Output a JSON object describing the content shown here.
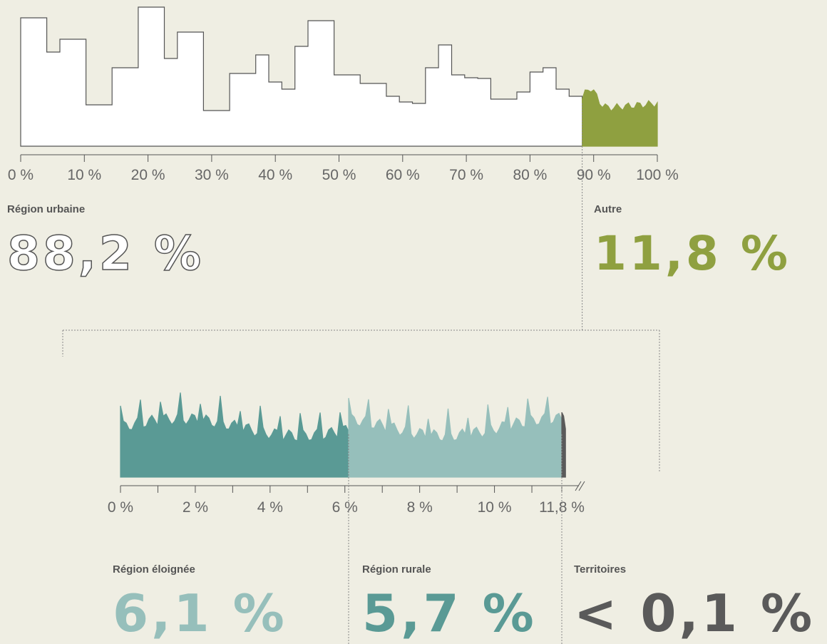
{
  "chart_data": [
    {
      "type": "silhouette-strip",
      "categories": [
        "Région urbaine",
        "Autre"
      ],
      "values": [
        88.2,
        11.8
      ],
      "value_labels": [
        "88,2 %",
        "11,8 %"
      ],
      "colors": [
        "#ffffff",
        "#8fa040"
      ],
      "label_colors": [
        "#ffffff",
        "#8fa040"
      ],
      "stroke": "#555555",
      "xlim": [
        0,
        100
      ],
      "xticks": [
        {
          "value": 0,
          "label": "0 %"
        },
        {
          "value": 10,
          "label": "10 %"
        },
        {
          "value": 20,
          "label": "20 %"
        },
        {
          "value": 30,
          "label": "30 %"
        },
        {
          "value": 40,
          "label": "40 %"
        },
        {
          "value": 50,
          "label": "50 %"
        },
        {
          "value": 60,
          "label": "60 %"
        },
        {
          "value": 70,
          "label": "70 %"
        },
        {
          "value": 80,
          "label": "80 %"
        },
        {
          "value": 90,
          "label": "90 %"
        },
        {
          "value": 100,
          "label": "100 %"
        }
      ]
    },
    {
      "type": "silhouette-strip",
      "categories": [
        "Région éloignée",
        "Région rurale",
        "Territoires"
      ],
      "values": [
        6.1,
        5.7,
        0.1
      ],
      "value_labels": [
        "6,1 %",
        "5,7 %",
        "< 0,1 %"
      ],
      "colors": [
        "#5a9a95",
        "#96bfbb",
        "#5a5a5a"
      ],
      "label_colors": [
        "#96bfbb",
        "#5a9a95",
        "#5a5a5a"
      ],
      "stroke": "#5a5a5a",
      "xlim": [
        0,
        11.8
      ],
      "xticks": [
        {
          "value": 0,
          "label": "0 %"
        },
        {
          "value": 2,
          "label": "2 %"
        },
        {
          "value": 4,
          "label": "4 %"
        },
        {
          "value": 6,
          "label": "6 %"
        },
        {
          "value": 8,
          "label": "8 %"
        },
        {
          "value": 10,
          "label": "10 %"
        },
        {
          "value": 11.8,
          "label": "11,8 %"
        }
      ],
      "minor_xticks": [
        1,
        3,
        5,
        7,
        9,
        11
      ]
    }
  ]
}
